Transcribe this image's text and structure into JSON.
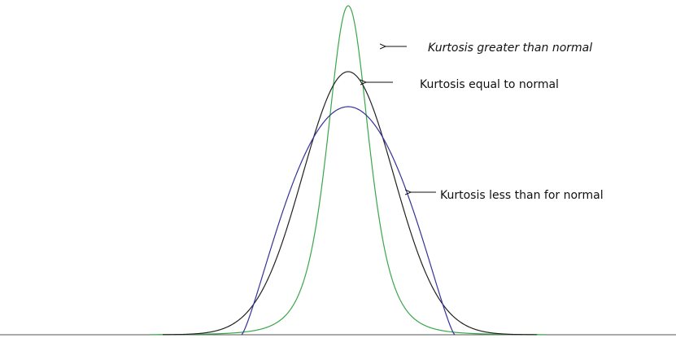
{
  "annotations": {
    "leptokurtic": "Kurtosis greater than normal",
    "mesokurtic": "Kurtosis equal to normal",
    "platykurtic": "Kurtosis less than for normal"
  }
}
